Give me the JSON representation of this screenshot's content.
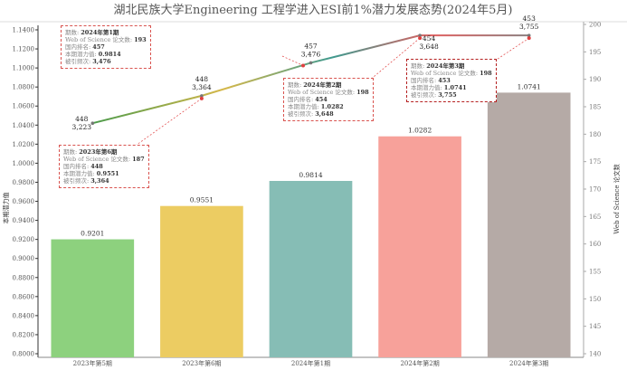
{
  "chart_data": {
    "type": "bar+line",
    "title": "湖北民族大学Engineering  工程学进入ESI前1%潜力发展态势(2024年5月)",
    "ylabel": "本期潜力值",
    "y2label": "Web of Science 论文数",
    "ylim": [
      0.8,
      1.14
    ],
    "y2lim": [
      140,
      200
    ],
    "yticks": [
      "0.8000",
      "0.8200",
      "0.8400",
      "0.8600",
      "0.8800",
      "0.9000",
      "0.9200",
      "0.9400",
      "0.9600",
      "0.9800",
      "1.0000",
      "1.0200",
      "1.0400",
      "1.0600",
      "1.0800",
      "1.1000",
      "1.1200",
      "1.1400"
    ],
    "y2ticks": [
      "140",
      "145",
      "150",
      "155",
      "160",
      "165",
      "170",
      "175",
      "180",
      "185",
      "190",
      "195",
      "200"
    ],
    "categories": [
      "2023年第5期",
      "2023年第6期",
      "2024年第1期",
      "2024年第2期",
      "2024年第3期"
    ],
    "bar_values": [
      0.9201,
      0.9551,
      0.9814,
      1.0282,
      1.0741
    ],
    "bar_labels": [
      "0.9201",
      "0.9551",
      "0.9814",
      "1.0282",
      "1.0741"
    ],
    "bar_colors": [
      "#8dd17e",
      "#eccc62",
      "#86bdb5",
      "#f7a19a",
      "#b5aaa6"
    ],
    "line_values": [
      182,
      187,
      193,
      198,
      198
    ],
    "rank": [
      "448",
      "448",
      "457",
      "454",
      "453"
    ],
    "citations": [
      "3,223",
      "3,364",
      "3,476",
      "3,648",
      "3,755"
    ]
  },
  "tooltips": [
    {
      "period_label": "期数: ",
      "period": "2024年第1期",
      "wos_label": "Web of Science 论文数: ",
      "wos": "193",
      "rank_label": "国内排名: ",
      "rank": "457",
      "pot_label": "本期潜力值: ",
      "pot": "0.9814",
      "cite_label": "被引频次: ",
      "cite": "3,476"
    },
    {
      "period_label": "期数: ",
      "period": "2023年第6期",
      "wos_label": "Web of Science 论文数: ",
      "wos": "187",
      "rank_label": "国内排名: ",
      "rank": "448",
      "pot_label": "本期潜力值: ",
      "pot": "0.9551",
      "cite_label": "被引频次: ",
      "cite": "3,364"
    },
    {
      "period_label": "期数: ",
      "period": "2024年第2期",
      "wos_label": "Web of Science 论文数: ",
      "wos": "198",
      "rank_label": "国内排名: ",
      "rank": "454",
      "pot_label": "本期潜力值: ",
      "pot": "1.0282",
      "cite_label": "被引频次: ",
      "cite": "3,648"
    },
    {
      "period_label": "期数: ",
      "period": "2024年第3期",
      "wos_label": "Web of Science 论文数: ",
      "wos": "198",
      "rank_label": "国内排名: ",
      "rank": "453",
      "pot_label": "本期潜力值: ",
      "pot": "1.0741",
      "cite_label": "被引频次: ",
      "cite": "3,755"
    }
  ]
}
